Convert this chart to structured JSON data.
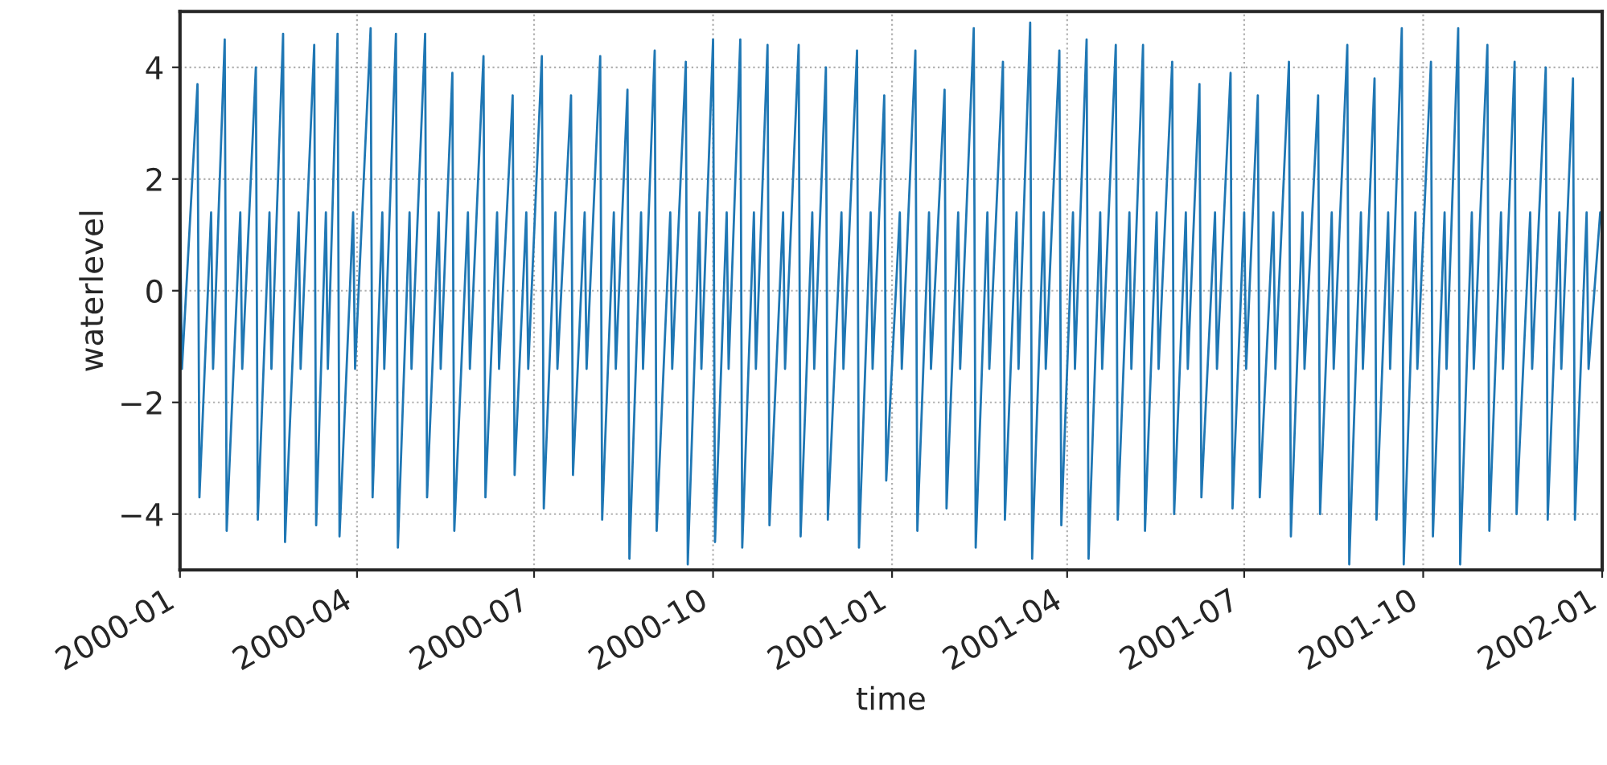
{
  "chart_data": {
    "type": "line",
    "xlabel": "time",
    "ylabel": "waterlevel",
    "xlim": [
      "2000-01-01",
      "2002-01-01"
    ],
    "xticks": [
      {
        "value": "2000-01-01",
        "label": "2000-01"
      },
      {
        "value": "2000-04-01",
        "label": "2000-04"
      },
      {
        "value": "2000-07-01",
        "label": "2000-07"
      },
      {
        "value": "2000-10-01",
        "label": "2000-10"
      },
      {
        "value": "2001-01-01",
        "label": "2001-01"
      },
      {
        "value": "2001-04-01",
        "label": "2001-04"
      },
      {
        "value": "2001-07-01",
        "label": "2001-07"
      },
      {
        "value": "2001-10-01",
        "label": "2001-10"
      },
      {
        "value": "2002-01-01",
        "label": "2002-01"
      }
    ],
    "ylim": [
      -5,
      5
    ],
    "yticks": [
      -4,
      -2,
      0,
      2,
      4
    ],
    "grid": true,
    "line_style": "solid",
    "marker": "none",
    "series": [
      {
        "color": "#1f77b4",
        "x": [
          "2000-01-01",
          "2000-01-02",
          "2000-01-10",
          "2000-01-11",
          "2000-01-17",
          "2000-01-18",
          "2000-01-24",
          "2000-01-25",
          "2000-02-01",
          "2000-02-02",
          "2000-02-09",
          "2000-02-10",
          "2000-02-16",
          "2000-02-17",
          "2000-02-23",
          "2000-02-24",
          "2000-03-02",
          "2000-03-03",
          "2000-03-10",
          "2000-03-11",
          "2000-03-16",
          "2000-03-17",
          "2000-03-22",
          "2000-03-23",
          "2000-03-30",
          "2000-03-31",
          "2000-04-08",
          "2000-04-09",
          "2000-04-14",
          "2000-04-15",
          "2000-04-21",
          "2000-04-22",
          "2000-04-28",
          "2000-04-29",
          "2000-05-06",
          "2000-05-07",
          "2000-05-13",
          "2000-05-14",
          "2000-05-20",
          "2000-05-21",
          "2000-05-28",
          "2000-05-29",
          "2000-06-05",
          "2000-06-06",
          "2000-06-12",
          "2000-06-13",
          "2000-06-20",
          "2000-06-21",
          "2000-06-27",
          "2000-06-28",
          "2000-07-05",
          "2000-07-06",
          "2000-07-12",
          "2000-07-13",
          "2000-07-20",
          "2000-07-21",
          "2000-07-27",
          "2000-07-28",
          "2000-08-04",
          "2000-08-05",
          "2000-08-11",
          "2000-08-12",
          "2000-08-18",
          "2000-08-19",
          "2000-08-25",
          "2000-08-26",
          "2000-09-01",
          "2000-09-02",
          "2000-09-09",
          "2000-09-10",
          "2000-09-17",
          "2000-09-18",
          "2000-09-24",
          "2000-09-25",
          "2000-10-01",
          "2000-10-02",
          "2000-10-08",
          "2000-10-09",
          "2000-10-15",
          "2000-10-16",
          "2000-10-22",
          "2000-10-23",
          "2000-10-29",
          "2000-10-30",
          "2000-11-06",
          "2000-11-07",
          "2000-11-14",
          "2000-11-15",
          "2000-11-21",
          "2000-11-22",
          "2000-11-28",
          "2000-11-29",
          "2000-12-06",
          "2000-12-07",
          "2000-12-14",
          "2000-12-15",
          "2000-12-21",
          "2000-12-22",
          "2000-12-28",
          "2000-12-29",
          "2001-01-05",
          "2001-01-06",
          "2001-01-13",
          "2001-01-14",
          "2001-01-20",
          "2001-01-21",
          "2001-01-28",
          "2001-01-29",
          "2001-02-04",
          "2001-02-05",
          "2001-02-12",
          "2001-02-13",
          "2001-02-19",
          "2001-02-20",
          "2001-02-27",
          "2001-02-28",
          "2001-03-06",
          "2001-03-07",
          "2001-03-13",
          "2001-03-14",
          "2001-03-20",
          "2001-03-21",
          "2001-03-28",
          "2001-03-29",
          "2001-04-04",
          "2001-04-05",
          "2001-04-11",
          "2001-04-12",
          "2001-04-18",
          "2001-04-19",
          "2001-04-26",
          "2001-04-27",
          "2001-05-03",
          "2001-05-04",
          "2001-05-10",
          "2001-05-11",
          "2001-05-17",
          "2001-05-18",
          "2001-05-25",
          "2001-05-26",
          "2001-06-01",
          "2001-06-02",
          "2001-06-08",
          "2001-06-09",
          "2001-06-16",
          "2001-06-17",
          "2001-06-24",
          "2001-06-25",
          "2001-07-01",
          "2001-07-02",
          "2001-07-08",
          "2001-07-09",
          "2001-07-16",
          "2001-07-17",
          "2001-07-24",
          "2001-07-25",
          "2001-07-31",
          "2001-08-01",
          "2001-08-08",
          "2001-08-09",
          "2001-08-15",
          "2001-08-16",
          "2001-08-23",
          "2001-08-24",
          "2001-08-30",
          "2001-08-31",
          "2001-09-06",
          "2001-09-07",
          "2001-09-13",
          "2001-09-14",
          "2001-09-20",
          "2001-09-21",
          "2001-09-27",
          "2001-09-28",
          "2001-10-05",
          "2001-10-06",
          "2001-10-12",
          "2001-10-13",
          "2001-10-19",
          "2001-10-20",
          "2001-10-26",
          "2001-10-27",
          "2001-11-03",
          "2001-11-04",
          "2001-11-10",
          "2001-11-11",
          "2001-11-17",
          "2001-11-18",
          "2001-11-25",
          "2001-11-26",
          "2001-12-03",
          "2001-12-04",
          "2001-12-10",
          "2001-12-11",
          "2001-12-17",
          "2001-12-18",
          "2001-12-24",
          "2001-12-25",
          "2001-12-31"
        ],
        "values": [
          1.4,
          -1.4,
          3.7,
          -3.7,
          1.4,
          -1.4,
          4.5,
          -4.3,
          1.4,
          -1.4,
          4.0,
          -4.1,
          1.4,
          -1.4,
          4.6,
          -4.5,
          1.4,
          -1.4,
          4.4,
          -4.2,
          1.4,
          -1.4,
          4.6,
          -4.4,
          1.4,
          -1.4,
          4.7,
          -3.7,
          1.4,
          -1.4,
          4.6,
          -4.6,
          1.4,
          -1.4,
          4.6,
          -3.7,
          1.4,
          -1.4,
          3.9,
          -4.3,
          1.4,
          -1.4,
          4.2,
          -3.7,
          1.4,
          -1.4,
          3.5,
          -3.3,
          1.4,
          -1.4,
          4.2,
          -3.9,
          1.4,
          -1.4,
          3.5,
          -3.3,
          1.4,
          -1.4,
          4.2,
          -4.1,
          1.4,
          -1.4,
          3.6,
          -4.8,
          1.4,
          -1.4,
          4.3,
          -4.3,
          1.4,
          -1.4,
          4.1,
          -4.9,
          1.4,
          -1.4,
          4.5,
          -4.5,
          1.4,
          -1.4,
          4.5,
          -4.6,
          1.4,
          -1.4,
          4.4,
          -4.2,
          1.4,
          -1.4,
          4.4,
          -4.4,
          1.4,
          -1.4,
          4.0,
          -4.1,
          1.4,
          -1.4,
          4.3,
          -4.6,
          1.4,
          -1.4,
          3.5,
          -3.4,
          1.4,
          -1.4,
          4.3,
          -4.3,
          1.4,
          -1.4,
          3.6,
          -3.9,
          1.4,
          -1.4,
          4.7,
          -4.6,
          1.4,
          -1.4,
          4.1,
          -4.1,
          1.4,
          -1.4,
          4.8,
          -4.8,
          1.4,
          -1.4,
          4.3,
          -4.2,
          1.4,
          -1.4,
          4.5,
          -4.8,
          1.4,
          -1.4,
          4.4,
          -4.1,
          1.4,
          -1.4,
          4.4,
          -4.3,
          1.4,
          -1.4,
          4.1,
          -4.0,
          1.4,
          -1.4,
          3.7,
          -3.7,
          1.4,
          -1.4,
          3.9,
          -3.9,
          1.4,
          -1.4,
          3.5,
          -3.7,
          1.4,
          -1.4,
          4.1,
          -4.4,
          1.4,
          -1.4,
          3.5,
          -4.0,
          1.4,
          -1.4,
          4.4,
          -4.9,
          1.4,
          -1.4,
          3.8,
          -4.1,
          1.4,
          -1.4,
          4.7,
          -4.9,
          1.4,
          -1.4,
          4.1,
          -4.4,
          1.4,
          -1.4,
          4.7,
          -4.9,
          1.4,
          -1.4,
          4.4,
          -4.3,
          1.4,
          -1.4,
          4.1,
          -4.0,
          1.4,
          -1.4,
          4.0,
          -4.1,
          1.4,
          -1.4,
          3.8,
          -4.1,
          1.4,
          -1.4,
          1.4
        ]
      }
    ]
  }
}
